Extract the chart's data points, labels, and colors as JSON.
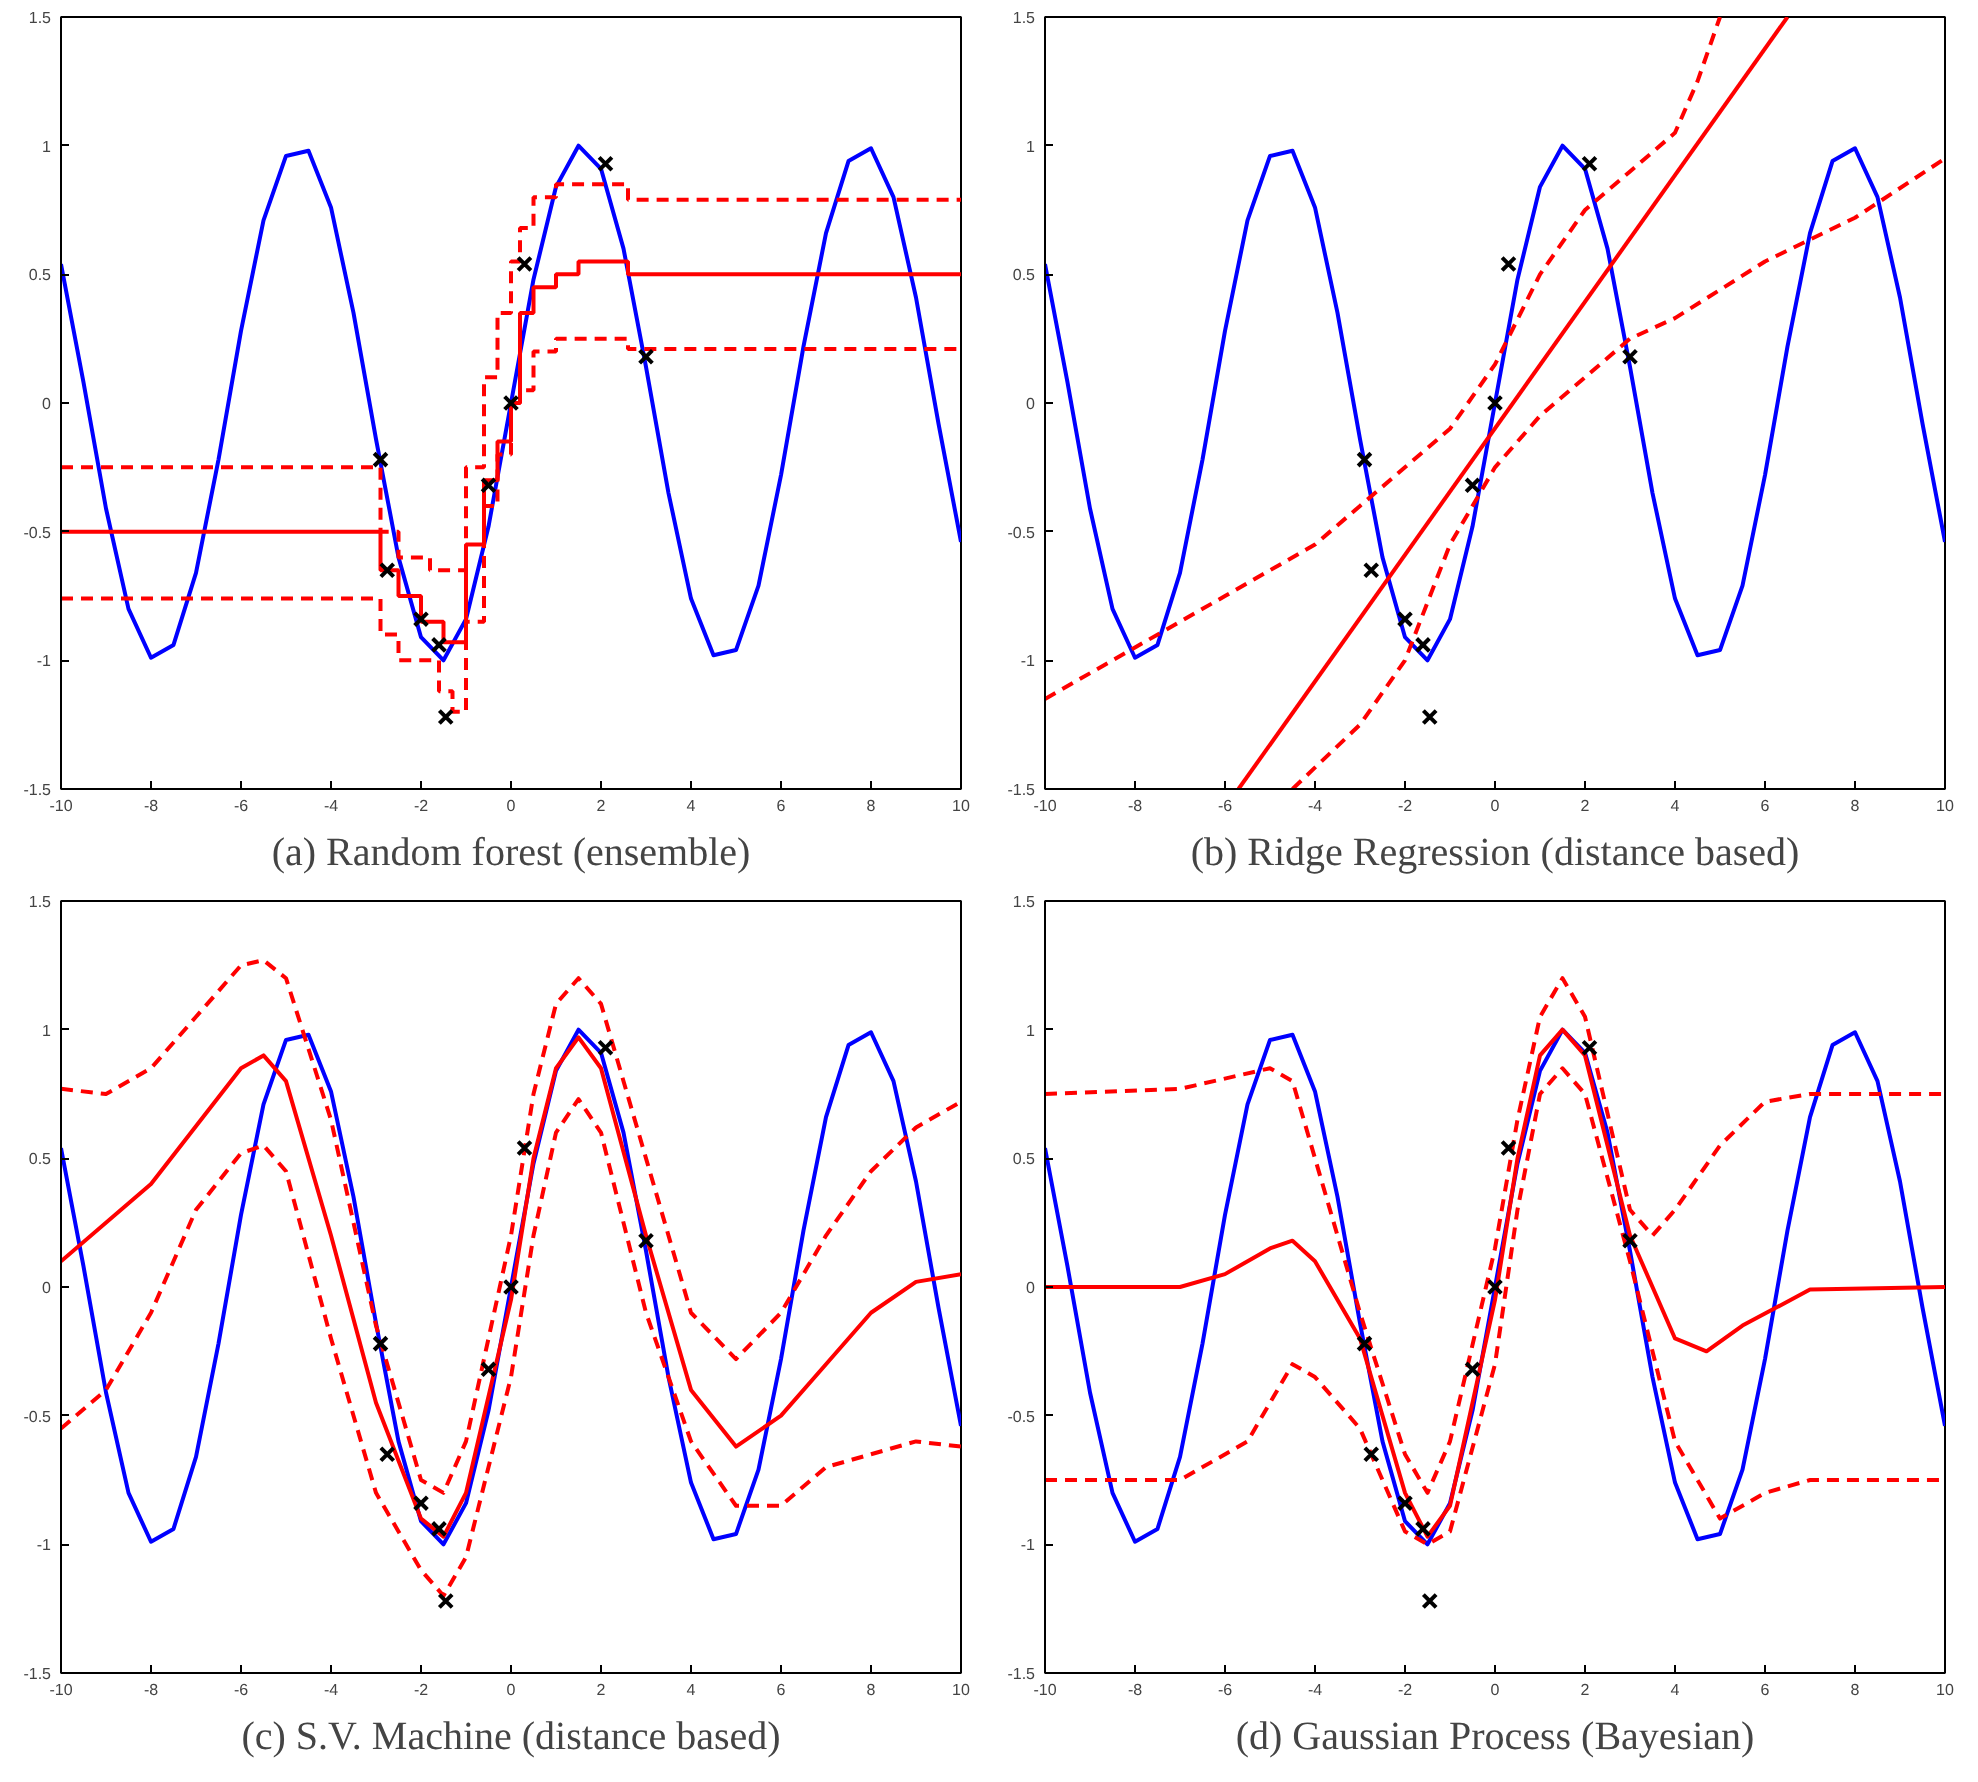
{
  "chart_data": [
    {
      "type": "line",
      "title": "(a) Random forest (ensemble)",
      "xlim": [
        -10,
        10
      ],
      "ylim": [
        -1.5,
        1.5
      ],
      "xticks": [
        -10,
        -8,
        -6,
        -4,
        -2,
        0,
        2,
        4,
        6,
        8,
        10
      ],
      "yticks": [
        -1.5,
        -1,
        -0.5,
        0,
        0.5,
        1,
        1.5
      ],
      "series": [
        {
          "type": "line",
          "color": "#0000ff",
          "line_style": "solid",
          "x": [
            -10,
            -9.5,
            -9,
            -8.5,
            -8,
            -7.5,
            -7,
            -6.5,
            -6,
            -5.5,
            -5,
            -4.5,
            -4,
            -3.5,
            -3,
            -2.5,
            -2,
            -1.5,
            -1,
            -0.5,
            0,
            0.5,
            1,
            1.5,
            2,
            2.5,
            3,
            3.5,
            4,
            4.5,
            5,
            5.5,
            6,
            6.5,
            7,
            7.5,
            8,
            8.5,
            9,
            9.5,
            10
          ],
          "values": [
            0.54,
            0.08,
            -0.41,
            -0.8,
            -0.99,
            -0.94,
            -0.66,
            -0.22,
            0.28,
            0.71,
            0.96,
            0.98,
            0.76,
            0.35,
            -0.14,
            -0.6,
            -0.91,
            -1.0,
            -0.84,
            -0.48,
            0,
            0.48,
            0.84,
            1.0,
            0.91,
            0.6,
            0.14,
            -0.35,
            -0.76,
            -0.98,
            -0.96,
            -0.71,
            -0.28,
            0.22,
            0.66,
            0.94,
            0.99,
            0.8,
            0.41,
            -0.08,
            -0.54
          ]
        },
        {
          "type": "step",
          "color": "#ff0000",
          "line_style": "solid",
          "x": [
            -10,
            -2.9,
            -2.5,
            -2,
            -1.5,
            -1,
            -0.6,
            -0.3,
            0,
            0.2,
            0.5,
            1,
            1.5,
            2.6,
            10
          ],
          "values": [
            -0.5,
            -0.65,
            -0.75,
            -0.85,
            -0.93,
            -0.55,
            -0.3,
            -0.15,
            0,
            0.35,
            0.45,
            0.5,
            0.55,
            0.5,
            0.5
          ]
        },
        {
          "type": "step",
          "color": "#ff0000",
          "line_style": "dashed",
          "x": [
            -10,
            -2.9,
            -2.5,
            -1.8,
            -1.2,
            -1,
            -0.6,
            -0.3,
            0,
            0.2,
            0.5,
            1,
            2.6,
            10
          ],
          "values": [
            -0.25,
            -0.5,
            -0.6,
            -0.65,
            -0.65,
            -0.25,
            0.1,
            0.35,
            0.55,
            0.68,
            0.8,
            0.85,
            0.79,
            0.79
          ]
        },
        {
          "type": "step",
          "color": "#ff0000",
          "line_style": "dashed",
          "x": [
            -10,
            -2.9,
            -2.5,
            -1.6,
            -1.3,
            -1,
            -0.6,
            -0.3,
            0,
            0.2,
            0.5,
            1,
            2.6,
            10
          ],
          "values": [
            -0.76,
            -0.9,
            -1.0,
            -1.12,
            -1.2,
            -0.85,
            -0.4,
            -0.2,
            0,
            0.05,
            0.2,
            0.25,
            0.21,
            0.21
          ]
        },
        {
          "type": "scatter",
          "color": "#000000",
          "marker": "cross",
          "x": [
            -2.9,
            -2.75,
            -2.0,
            -1.6,
            -1.45,
            -0.5,
            0,
            0.3,
            2.1,
            3.0
          ],
          "values": [
            -0.22,
            -0.65,
            -0.84,
            -0.94,
            -1.22,
            -0.32,
            0,
            0.54,
            0.93,
            0.18
          ]
        }
      ]
    },
    {
      "type": "line",
      "title": "(b) Ridge Regression (distance based)",
      "xlim": [
        -10,
        10
      ],
      "ylim": [
        -1.5,
        1.5
      ],
      "xticks": [
        -10,
        -8,
        -6,
        -4,
        -2,
        0,
        2,
        4,
        6,
        8,
        10
      ],
      "yticks": [
        -1.5,
        -1,
        -0.5,
        0,
        0.5,
        1,
        1.5
      ],
      "series": [
        {
          "type": "line",
          "color": "#0000ff",
          "line_style": "solid",
          "x": [
            -10,
            -9.5,
            -9,
            -8.5,
            -8,
            -7.5,
            -7,
            -6.5,
            -6,
            -5.5,
            -5,
            -4.5,
            -4,
            -3.5,
            -3,
            -2.5,
            -2,
            -1.5,
            -1,
            -0.5,
            0,
            0.5,
            1,
            1.5,
            2,
            2.5,
            3,
            3.5,
            4,
            4.5,
            5,
            5.5,
            6,
            6.5,
            7,
            7.5,
            8,
            8.5,
            9,
            9.5,
            10
          ],
          "values": [
            0.54,
            0.08,
            -0.41,
            -0.8,
            -0.99,
            -0.94,
            -0.66,
            -0.22,
            0.28,
            0.71,
            0.96,
            0.98,
            0.76,
            0.35,
            -0.14,
            -0.6,
            -0.91,
            -1.0,
            -0.84,
            -0.48,
            0,
            0.48,
            0.84,
            1.0,
            0.91,
            0.6,
            0.14,
            -0.35,
            -0.76,
            -0.98,
            -0.96,
            -0.71,
            -0.28,
            0.22,
            0.66,
            0.94,
            0.99,
            0.8,
            0.41,
            -0.08,
            -0.54
          ]
        },
        {
          "type": "line",
          "color": "#ff0000",
          "line_style": "solid",
          "x": [
            -5.7,
            6.5
          ],
          "values": [
            -1.5,
            1.5
          ]
        },
        {
          "type": "line",
          "color": "#ff0000",
          "line_style": "dashed",
          "x": [
            -10,
            -8,
            -6,
            -4,
            -3,
            -2,
            -1,
            0,
            1,
            2,
            3,
            4,
            4.5,
            5
          ],
          "values": [
            -1.15,
            -0.95,
            -0.75,
            -0.55,
            -0.4,
            -0.25,
            -0.1,
            0.15,
            0.5,
            0.75,
            0.9,
            1.05,
            1.25,
            1.5
          ]
        },
        {
          "type": "line",
          "color": "#ff0000",
          "line_style": "dashed",
          "x": [
            -4.5,
            -3,
            -2,
            -1,
            0,
            1,
            2,
            3,
            4,
            6,
            8,
            10
          ],
          "values": [
            -1.5,
            -1.25,
            -1.0,
            -0.55,
            -0.25,
            -0.05,
            0.1,
            0.25,
            0.33,
            0.55,
            0.72,
            0.95
          ]
        },
        {
          "type": "scatter",
          "color": "#000000",
          "marker": "cross",
          "x": [
            -2.9,
            -2.75,
            -2.0,
            -1.6,
            -1.45,
            -0.5,
            0,
            0.3,
            2.1,
            3.0
          ],
          "values": [
            -0.22,
            -0.65,
            -0.84,
            -0.94,
            -1.22,
            -0.32,
            0,
            0.54,
            0.93,
            0.18
          ]
        }
      ]
    },
    {
      "type": "line",
      "title": "(c) S.V. Machine (distance based)",
      "xlim": [
        -10,
        10
      ],
      "ylim": [
        -1.5,
        1.5
      ],
      "xticks": [
        -10,
        -8,
        -6,
        -4,
        -2,
        0,
        2,
        4,
        6,
        8,
        10
      ],
      "yticks": [
        -1.5,
        -1,
        -0.5,
        0,
        0.5,
        1,
        1.5
      ],
      "series": [
        {
          "type": "line",
          "color": "#0000ff",
          "line_style": "solid",
          "x": [
            -10,
            -9.5,
            -9,
            -8.5,
            -8,
            -7.5,
            -7,
            -6.5,
            -6,
            -5.5,
            -5,
            -4.5,
            -4,
            -3.5,
            -3,
            -2.5,
            -2,
            -1.5,
            -1,
            -0.5,
            0,
            0.5,
            1,
            1.5,
            2,
            2.5,
            3,
            3.5,
            4,
            4.5,
            5,
            5.5,
            6,
            6.5,
            7,
            7.5,
            8,
            8.5,
            9,
            9.5,
            10
          ],
          "values": [
            0.54,
            0.08,
            -0.41,
            -0.8,
            -0.99,
            -0.94,
            -0.66,
            -0.22,
            0.28,
            0.71,
            0.96,
            0.98,
            0.76,
            0.35,
            -0.14,
            -0.6,
            -0.91,
            -1.0,
            -0.84,
            -0.48,
            0,
            0.48,
            0.84,
            1.0,
            0.91,
            0.6,
            0.14,
            -0.35,
            -0.76,
            -0.98,
            -0.96,
            -0.71,
            -0.28,
            0.22,
            0.66,
            0.94,
            0.99,
            0.8,
            0.41,
            -0.08,
            -0.54
          ]
        },
        {
          "type": "line",
          "color": "#ff0000",
          "line_style": "solid",
          "x": [
            -10,
            -8,
            -6,
            -5.5,
            -5,
            -4,
            -3,
            -2,
            -1.5,
            -1,
            0,
            0.5,
            1,
            1.5,
            2,
            3,
            4,
            5,
            6,
            7,
            8,
            9,
            10
          ],
          "values": [
            0.1,
            0.4,
            0.85,
            0.9,
            0.8,
            0.2,
            -0.45,
            -0.9,
            -0.97,
            -0.8,
            -0.05,
            0.5,
            0.85,
            0.97,
            0.85,
            0.2,
            -0.4,
            -0.62,
            -0.5,
            -0.3,
            -0.1,
            0.02,
            0.05
          ]
        },
        {
          "type": "line",
          "color": "#ff0000",
          "line_style": "dashed",
          "x": [
            -10,
            -9,
            -8,
            -7,
            -6,
            -5.5,
            -5,
            -4,
            -3,
            -2,
            -1.5,
            -1,
            0,
            0.5,
            1,
            1.5,
            2,
            3,
            4,
            5,
            6,
            7,
            8,
            9,
            10
          ],
          "values": [
            0.77,
            0.75,
            0.85,
            1.05,
            1.25,
            1.27,
            1.2,
            0.65,
            -0.15,
            -0.75,
            -0.8,
            -0.6,
            0.2,
            0.75,
            1.1,
            1.2,
            1.1,
            0.5,
            -0.1,
            -0.28,
            -0.1,
            0.2,
            0.45,
            0.62,
            0.72
          ]
        },
        {
          "type": "line",
          "color": "#ff0000",
          "line_style": "dashed",
          "x": [
            -10,
            -9,
            -8,
            -7,
            -6,
            -5.5,
            -5,
            -4,
            -3,
            -2,
            -1.5,
            -1,
            0,
            0.5,
            1,
            1.5,
            2,
            3,
            4,
            5,
            6,
            7,
            8,
            9,
            10
          ],
          "values": [
            -0.55,
            -0.4,
            -0.1,
            0.3,
            0.52,
            0.55,
            0.45,
            -0.2,
            -0.8,
            -1.1,
            -1.2,
            -1.05,
            -0.35,
            0.2,
            0.6,
            0.73,
            0.6,
            -0.1,
            -0.6,
            -0.85,
            -0.85,
            -0.7,
            -0.65,
            -0.6,
            -0.62
          ]
        },
        {
          "type": "scatter",
          "color": "#000000",
          "marker": "cross",
          "x": [
            -2.9,
            -2.75,
            -2.0,
            -1.6,
            -1.45,
            -0.5,
            0,
            0.3,
            2.1,
            3.0
          ],
          "values": [
            -0.22,
            -0.65,
            -0.84,
            -0.94,
            -1.22,
            -0.32,
            0,
            0.54,
            0.93,
            0.18
          ]
        }
      ]
    },
    {
      "type": "line",
      "title": "(d) Gaussian Process (Bayesian)",
      "xlim": [
        -10,
        10
      ],
      "ylim": [
        -1.5,
        1.5
      ],
      "xticks": [
        -10,
        -8,
        -6,
        -4,
        -2,
        0,
        2,
        4,
        6,
        8,
        10
      ],
      "yticks": [
        -1.5,
        -1,
        -0.5,
        0,
        0.5,
        1,
        1.5
      ],
      "series": [
        {
          "type": "line",
          "color": "#0000ff",
          "line_style": "solid",
          "x": [
            -10,
            -9.5,
            -9,
            -8.5,
            -8,
            -7.5,
            -7,
            -6.5,
            -6,
            -5.5,
            -5,
            -4.5,
            -4,
            -3.5,
            -3,
            -2.5,
            -2,
            -1.5,
            -1,
            -0.5,
            0,
            0.5,
            1,
            1.5,
            2,
            2.5,
            3,
            3.5,
            4,
            4.5,
            5,
            5.5,
            6,
            6.5,
            7,
            7.5,
            8,
            8.5,
            9,
            9.5,
            10
          ],
          "values": [
            0.54,
            0.08,
            -0.41,
            -0.8,
            -0.99,
            -0.94,
            -0.66,
            -0.22,
            0.28,
            0.71,
            0.96,
            0.98,
            0.76,
            0.35,
            -0.14,
            -0.6,
            -0.91,
            -1.0,
            -0.84,
            -0.48,
            0,
            0.48,
            0.84,
            1.0,
            0.91,
            0.6,
            0.14,
            -0.35,
            -0.76,
            -0.98,
            -0.96,
            -0.71,
            -0.28,
            0.22,
            0.66,
            0.94,
            0.99,
            0.8,
            0.41,
            -0.08,
            -0.54
          ]
        },
        {
          "type": "line",
          "color": "#ff0000",
          "line_style": "solid",
          "x": [
            -10,
            -7,
            -6,
            -5,
            -4.5,
            -4,
            -3,
            -2,
            -1.5,
            -1,
            0,
            0.5,
            1,
            1.5,
            2,
            3,
            4,
            4.7,
            5.5,
            7,
            10
          ],
          "values": [
            0,
            0,
            0.05,
            0.15,
            0.18,
            0.1,
            -0.2,
            -0.8,
            -0.97,
            -0.85,
            -0.05,
            0.5,
            0.9,
            1.0,
            0.9,
            0.2,
            -0.2,
            -0.25,
            -0.15,
            -0.01,
            0
          ]
        },
        {
          "type": "line",
          "color": "#ff0000",
          "line_style": "dashed",
          "x": [
            -10,
            -7,
            -5,
            -4.5,
            -4,
            -3,
            -2,
            -1.5,
            -1,
            0,
            0.5,
            1,
            1.5,
            2,
            3,
            3.5,
            4,
            5,
            6,
            7,
            10
          ],
          "values": [
            0.75,
            0.77,
            0.85,
            0.8,
            0.5,
            -0.1,
            -0.65,
            -0.8,
            -0.6,
            0.15,
            0.65,
            1.05,
            1.2,
            1.05,
            0.3,
            0.2,
            0.3,
            0.55,
            0.72,
            0.75,
            0.75
          ]
        },
        {
          "type": "line",
          "color": "#ff0000",
          "line_style": "dashed",
          "x": [
            -10,
            -7,
            -5.5,
            -4.5,
            -4,
            -3,
            -2,
            -1.5,
            -1,
            0,
            0.5,
            1,
            1.5,
            2,
            3,
            4,
            5,
            6,
            7,
            10
          ],
          "values": [
            -0.75,
            -0.75,
            -0.6,
            -0.3,
            -0.35,
            -0.55,
            -0.95,
            -1.0,
            -0.95,
            -0.3,
            0.3,
            0.75,
            0.85,
            0.75,
            0.1,
            -0.6,
            -0.9,
            -0.8,
            -0.75,
            -0.75
          ]
        },
        {
          "type": "scatter",
          "color": "#000000",
          "marker": "cross",
          "x": [
            -2.9,
            -2.75,
            -2.0,
            -1.6,
            -1.45,
            -0.5,
            0,
            0.3,
            2.1,
            3.0
          ],
          "values": [
            -0.22,
            -0.65,
            -0.84,
            -0.94,
            -1.22,
            -0.32,
            0,
            0.54,
            0.93,
            0.18
          ]
        }
      ]
    }
  ]
}
